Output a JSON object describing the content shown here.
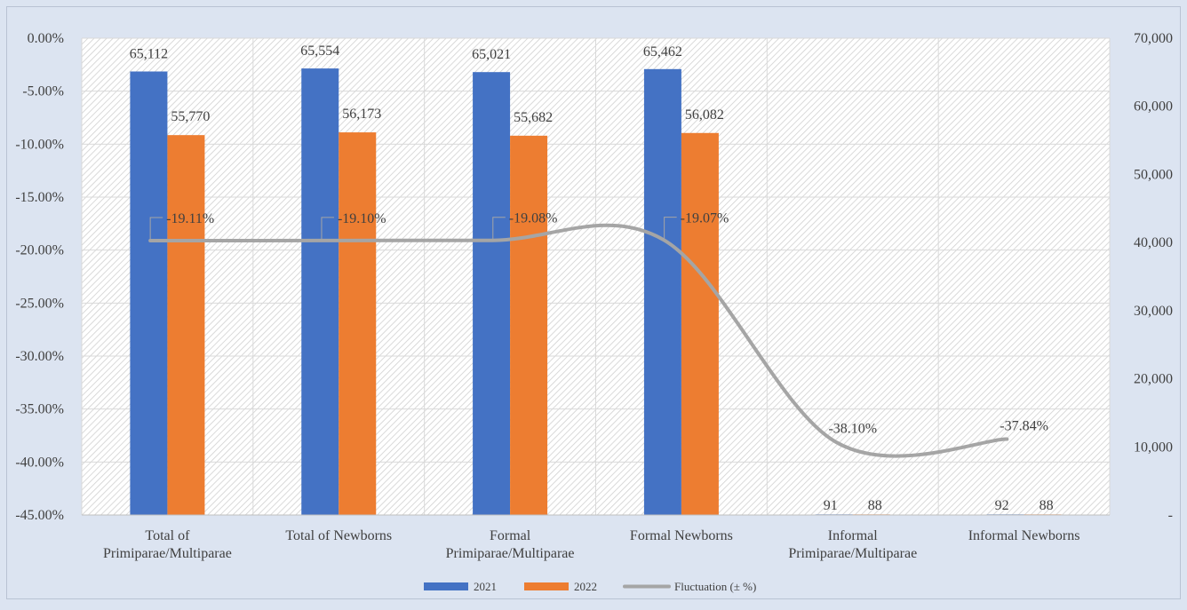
{
  "chart_data": {
    "type": "bar",
    "title": "",
    "xlabel": "",
    "ylabel": "",
    "categories": [
      [
        "Total of",
        "Primiparae/Multiparae"
      ],
      [
        "Total of Newborns"
      ],
      [
        "Formal",
        "Primiparae/Multiparae"
      ],
      [
        "Formal Newborns"
      ],
      [
        "Informal",
        "Primiparae/Multiparae"
      ],
      [
        "Informal Newborns"
      ]
    ],
    "series": [
      {
        "name": "2021",
        "type": "bar",
        "axis": "right",
        "color": "#4472c4",
        "values": [
          65112,
          65554,
          65021,
          65462,
          91,
          92
        ],
        "labels": [
          "65,112",
          "65,554",
          "65,021",
          "65,462",
          "91",
          "92"
        ]
      },
      {
        "name": "2022",
        "type": "bar",
        "axis": "right",
        "color": "#ed7d31",
        "values": [
          55770,
          56173,
          55682,
          56082,
          88,
          88
        ],
        "labels": [
          "55,770",
          "56,173",
          "55,682",
          "56,082",
          "88",
          "88"
        ]
      },
      {
        "name": "Fluctuation (± %)",
        "type": "line",
        "axis": "left",
        "color": "#a5a5a5",
        "values": [
          -19.11,
          -19.1,
          -19.08,
          -19.07,
          -38.1,
          -37.84
        ],
        "labels": [
          "-19.11%",
          "-19.10%",
          "-19.08%",
          "-19.07%",
          "-38.10%",
          "-37.84%"
        ]
      }
    ],
    "left_axis": {
      "min": -45,
      "max": 0,
      "ticks": [
        0,
        -5,
        -10,
        -15,
        -20,
        -25,
        -30,
        -35,
        -40,
        -45
      ],
      "tick_labels": [
        "0.00%",
        "-5.00%",
        "-10.00%",
        "-15.00%",
        "-20.00%",
        "-25.00%",
        "-30.00%",
        "-35.00%",
        "-40.00%",
        "-45.00%"
      ]
    },
    "right_axis": {
      "min": 0,
      "max": 70000,
      "ticks": [
        70000,
        60000,
        50000,
        40000,
        30000,
        20000,
        10000,
        0
      ],
      "tick_labels": [
        "70,000",
        "60,000",
        "50,000",
        "40,000",
        "30,000",
        "20,000",
        "10,000",
        "-"
      ]
    },
    "grid": true,
    "legend_position": "bottom",
    "legend": [
      "2021",
      "2022",
      "Fluctuation (± %)"
    ]
  }
}
